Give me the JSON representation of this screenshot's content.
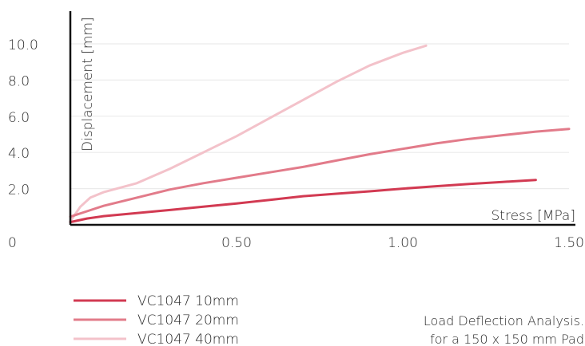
{
  "chart_data": {
    "type": "line",
    "xlabel": "Stress [MPa]",
    "ylabel": "Displacement [mm]",
    "xlim": [
      0,
      1.5
    ],
    "ylim": [
      0,
      11
    ],
    "origin_label": "0",
    "x_ticks": [
      {
        "value": 0.5,
        "label": "0.50"
      },
      {
        "value": 1.0,
        "label": "1.00"
      },
      {
        "value": 1.5,
        "label": "1.50"
      }
    ],
    "y_ticks": [
      {
        "value": 2.0,
        "label": "2.0"
      },
      {
        "value": 4.0,
        "label": "4.0"
      },
      {
        "value": 6.0,
        "label": "6.0"
      },
      {
        "value": 8.0,
        "label": "8.0"
      },
      {
        "value": 10.0,
        "label": "10.0"
      }
    ],
    "grid": "horizontal",
    "legend_position": "bottom-left",
    "series": [
      {
        "name": "VC1047 10mm",
        "color": "#d23a52",
        "points": [
          [
            0.0,
            0.15
          ],
          [
            0.05,
            0.35
          ],
          [
            0.1,
            0.48
          ],
          [
            0.2,
            0.65
          ],
          [
            0.3,
            0.82
          ],
          [
            0.4,
            1.0
          ],
          [
            0.5,
            1.18
          ],
          [
            0.6,
            1.38
          ],
          [
            0.7,
            1.58
          ],
          [
            0.8,
            1.72
          ],
          [
            0.9,
            1.85
          ],
          [
            1.0,
            2.0
          ],
          [
            1.1,
            2.13
          ],
          [
            1.2,
            2.26
          ],
          [
            1.3,
            2.37
          ],
          [
            1.4,
            2.48
          ]
        ]
      },
      {
        "name": "VC1047 20mm",
        "color": "#e27b8a",
        "points": [
          [
            0.0,
            0.45
          ],
          [
            0.05,
            0.75
          ],
          [
            0.1,
            1.05
          ],
          [
            0.2,
            1.5
          ],
          [
            0.3,
            1.95
          ],
          [
            0.4,
            2.3
          ],
          [
            0.5,
            2.6
          ],
          [
            0.6,
            2.9
          ],
          [
            0.7,
            3.2
          ],
          [
            0.8,
            3.55
          ],
          [
            0.9,
            3.9
          ],
          [
            1.0,
            4.2
          ],
          [
            1.1,
            4.5
          ],
          [
            1.2,
            4.75
          ],
          [
            1.3,
            4.95
          ],
          [
            1.4,
            5.15
          ],
          [
            1.5,
            5.3
          ]
        ]
      },
      {
        "name": "VC1047 40mm",
        "color": "#f3c2ca",
        "points": [
          [
            0.0,
            0.2
          ],
          [
            0.03,
            1.0
          ],
          [
            0.06,
            1.5
          ],
          [
            0.1,
            1.8
          ],
          [
            0.2,
            2.3
          ],
          [
            0.3,
            3.1
          ],
          [
            0.4,
            4.0
          ],
          [
            0.5,
            4.9
          ],
          [
            0.6,
            5.9
          ],
          [
            0.7,
            6.9
          ],
          [
            0.8,
            7.9
          ],
          [
            0.9,
            8.8
          ],
          [
            1.0,
            9.5
          ],
          [
            1.07,
            9.9
          ]
        ]
      }
    ],
    "caption": [
      "Load Deflection Analysis.",
      "for a 150 x 150 mm Pad"
    ]
  }
}
